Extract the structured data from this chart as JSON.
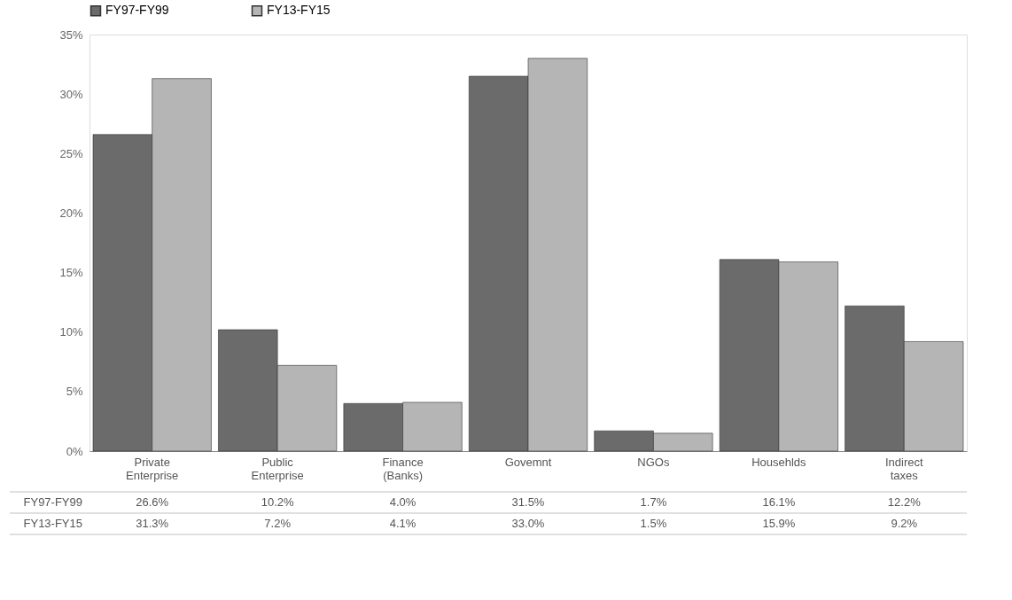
{
  "chart_data": {
    "type": "bar",
    "categories": [
      "Private Enterprise",
      "Public Enterprise",
      "Finance (Banks)",
      "Govemnt",
      "NGOs",
      "Househlds",
      "Indirect taxes"
    ],
    "series": [
      {
        "name": "FY97-FY99",
        "color": "#6b6b6b",
        "values": [
          26.6,
          10.2,
          4.0,
          31.5,
          1.7,
          16.1,
          12.2
        ],
        "value_labels": [
          "26.6%",
          "10.2%",
          "4.0%",
          "31.5%",
          "1.7%",
          "16.1%",
          "12.2%"
        ]
      },
      {
        "name": "FY13-FY15",
        "color": "#b5b5b5",
        "values": [
          31.3,
          7.2,
          4.1,
          33.0,
          1.5,
          15.9,
          9.2
        ],
        "value_labels": [
          "31.3%",
          "7.2%",
          "4.1%",
          "33.0%",
          "1.5%",
          "15.9%",
          "9.2%"
        ]
      }
    ],
    "ylim": [
      0,
      35
    ],
    "yticks": [
      {
        "value": 0,
        "label": "0%"
      },
      {
        "value": 5,
        "label": "5%"
      },
      {
        "value": 10,
        "label": "10%"
      },
      {
        "value": 15,
        "label": "15%"
      },
      {
        "value": 20,
        "label": "20%"
      },
      {
        "value": 25,
        "label": "25%"
      },
      {
        "value": 30,
        "label": "30%"
      },
      {
        "value": 35,
        "label": "35%"
      }
    ],
    "legend": "top",
    "grid": false
  }
}
